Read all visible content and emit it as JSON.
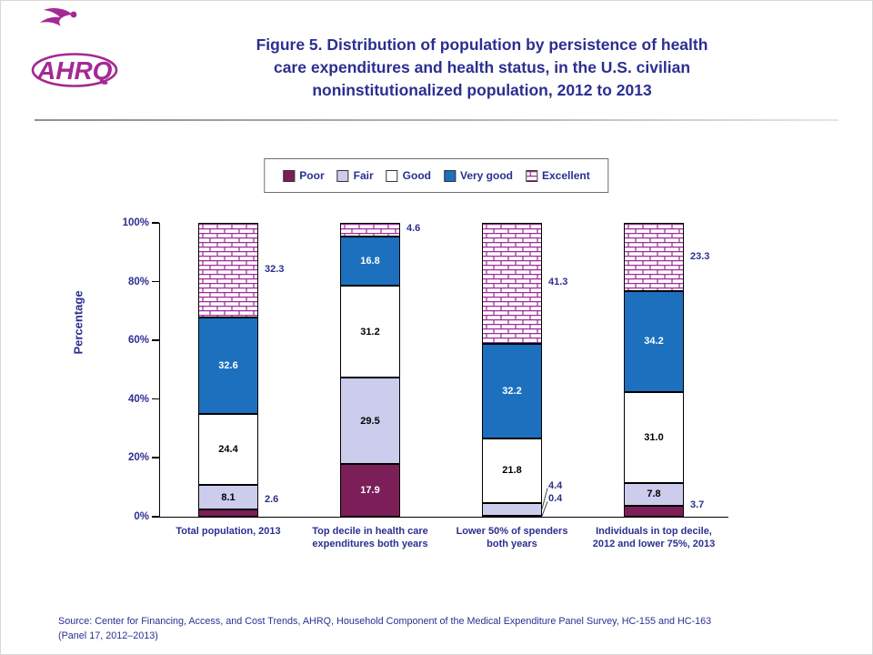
{
  "theme": {
    "dark_blue": "#2B2F90",
    "magenta": "#A42994",
    "bar_maroon": "#7C1E58",
    "bar_lavender": "#CCCCEC",
    "bar_blue": "#1C70BE",
    "brick_line": "#9E2B94"
  },
  "page": {
    "logo_text": "AHRQ",
    "title_lines": [
      "Figure 5. Distribution of population by persistence of health",
      "care expenditures and health status, in the U.S. civilian",
      "noninstitutionalized population, 2012 to 2013"
    ],
    "source_lines": [
      "Source: Center for Financing, Access, and Cost Trends, AHRQ, Household Component of the Medical Expenditure Panel Survey, HC-155 and HC-163",
      "(Panel 17, 2012–2013)"
    ]
  },
  "legend": {
    "items": [
      {
        "label": "Poor",
        "color": "#7C1E58"
      },
      {
        "label": "Fair",
        "color": "#CCCCEC"
      },
      {
        "label": "Good",
        "color": "#FFFFFF"
      },
      {
        "label": "Very good",
        "color": "#1C70BE"
      },
      {
        "label": "Excellent",
        "color": "brick"
      }
    ]
  },
  "chart_data": {
    "type": "bar",
    "stacked": true,
    "title": "Figure 5. Distribution of population by persistence of health care expenditures and health status, in the U.S. civilian noninstitutionalized population, 2012 to 2013",
    "xlabel": "",
    "ylabel": "Percentage",
    "ylim": [
      0,
      100
    ],
    "yticks": [
      "0%",
      "20%",
      "40%",
      "60%",
      "80%",
      "100%"
    ],
    "grid": false,
    "legend_position": "top",
    "series_names": [
      "Poor",
      "Fair",
      "Good",
      "Very good",
      "Excellent"
    ],
    "series_colors": [
      "#7C1E58",
      "#CCCCEC",
      "#FFFFFF",
      "#1C70BE",
      "brick"
    ],
    "categories": [
      [
        "Total population, 2013"
      ],
      [
        "Top decile in health care",
        "expenditures both years"
      ],
      [
        "Lower 50% of spenders",
        "both years"
      ],
      [
        "Individuals in top decile,",
        "2012 and lower 75%, 2013"
      ]
    ],
    "groups": [
      {
        "values": [
          2.6,
          8.1,
          24.4,
          32.6,
          32.3
        ],
        "labels": [
          "2.6",
          "8.1",
          "24.4",
          "32.6",
          "32.3"
        ],
        "placements": [
          "out",
          "in",
          "in",
          "in",
          "out"
        ],
        "dy": [
          -14,
          0,
          0,
          0,
          0
        ]
      },
      {
        "values": [
          17.9,
          29.5,
          31.2,
          16.8,
          4.6
        ],
        "labels": [
          "17.9",
          "29.5",
          "31.2",
          "16.8",
          "4.6"
        ],
        "placements": [
          "in",
          "in",
          "in",
          "in",
          "out"
        ],
        "dy": [
          0,
          0,
          0,
          0,
          0
        ]
      },
      {
        "values": [
          0.4,
          4.4,
          21.8,
          32.2,
          41.3
        ],
        "labels": [
          "0.4",
          "4.4",
          "21.8",
          "32.2",
          "41.3"
        ],
        "placements": [
          "out-line",
          "out-line",
          "in",
          "in",
          "out"
        ],
        "dy": [
          -18,
          -25,
          0,
          0,
          0
        ]
      },
      {
        "values": [
          3.7,
          7.8,
          31.0,
          34.2,
          23.3
        ],
        "labels": [
          "3.7",
          "7.8",
          "31.0",
          "34.2",
          "23.3"
        ],
        "placements": [
          "out",
          "in",
          "in",
          "in",
          "out"
        ],
        "dy": [
          -6,
          0,
          0,
          0,
          0
        ]
      }
    ]
  }
}
